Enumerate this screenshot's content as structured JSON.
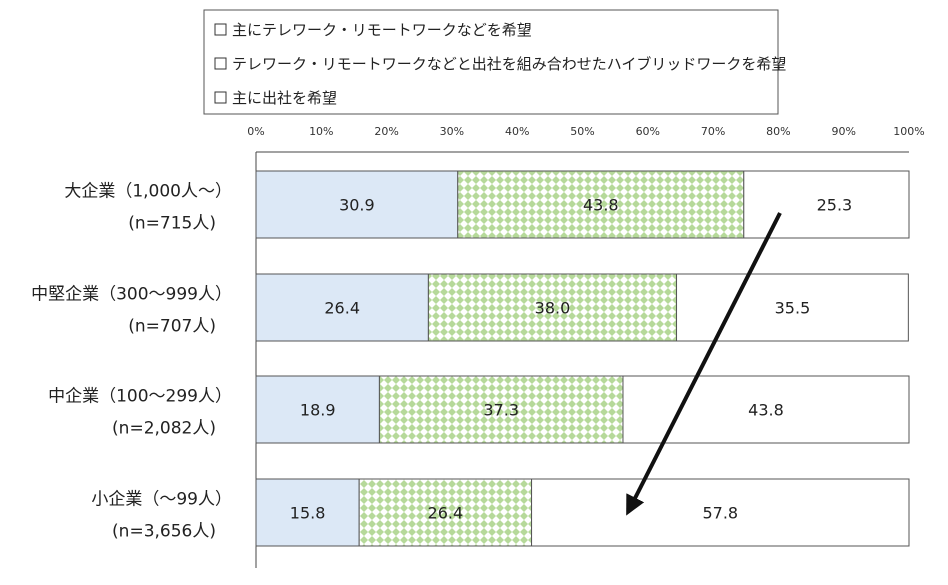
{
  "chart_data": {
    "type": "bar",
    "orientation": "horizontal",
    "stacked": "percent",
    "categories": [
      {
        "name": "大企業（1,000人～）",
        "n": "(n=715人)"
      },
      {
        "name": "中堅企業（300～999人）",
        "n": "(n=707人)"
      },
      {
        "name": "中企業（100～299人）",
        "n": "(n=2,082人)"
      },
      {
        "name": "小企業（～99人）",
        "n": "(n=3,656人)"
      }
    ],
    "series": [
      {
        "name": "主にテレワーク・リモートワークなどを希望",
        "values": [
          30.9,
          26.4,
          18.9,
          15.8
        ],
        "color": "#dce8f6"
      },
      {
        "name": "テレワーク・リモートワークなどと出社を組み合わせたハイブリッドワークを希望",
        "values": [
          43.8,
          38.0,
          37.3,
          26.4
        ],
        "color": "#d9ecc7"
      },
      {
        "name": "主に出社を希望",
        "values": [
          25.3,
          35.5,
          43.8,
          57.8
        ],
        "color": "#ffffff"
      }
    ],
    "x_ticks": [
      "0%",
      "10%",
      "20%",
      "30%",
      "40%",
      "50%",
      "60%",
      "70%",
      "80%",
      "90%",
      "100%"
    ],
    "xlim": [
      0,
      100
    ],
    "legend_position": "top",
    "grid": false,
    "annotation": "arrow"
  }
}
